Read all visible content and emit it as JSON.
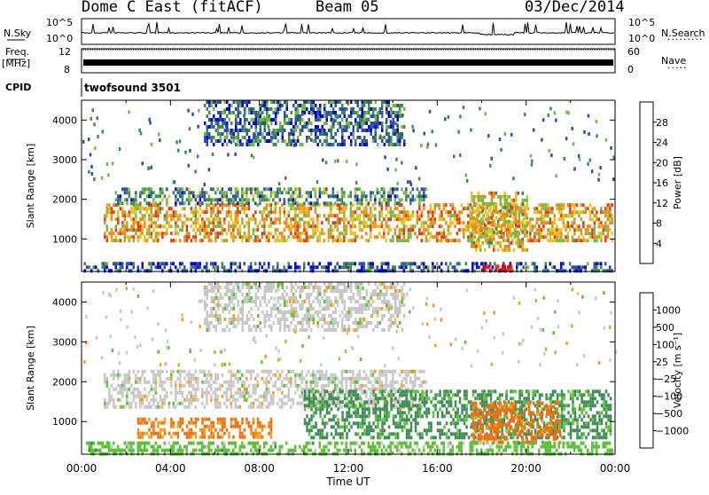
{
  "header": {
    "title": "Dome C East (fitACF)",
    "beam": "Beam 05",
    "date": "03/Dec/2014"
  },
  "status_panels": {
    "nsky_label": "N.Sky",
    "nsky_ticks": [
      "10^5",
      "10^0"
    ],
    "nsearch_label": "N.Search",
    "nsearch_ticks": [
      "10^5",
      "10^0"
    ],
    "freq_label": "Freq.",
    "freq_unit": "[MHz]",
    "freq_ticks": [
      "12",
      "8"
    ],
    "nave_label": "Nave",
    "nave_ticks": [
      "60",
      "0"
    ],
    "cpid_label": "CPID",
    "cpid_value": "twofsound 3501"
  },
  "chart_data": [
    {
      "type": "heatmap",
      "name": "power",
      "ylabel": "Slant Range [km]",
      "ylim": [
        180,
        4500
      ],
      "yticks": [
        "1000",
        "2000",
        "3000",
        "4000"
      ],
      "xlim": [
        "00:00",
        "24:00"
      ],
      "colorbar": {
        "label": "Power [dB]",
        "ticks": [
          "4",
          "8",
          "12",
          "16",
          "20",
          "24",
          "28"
        ],
        "colors": [
          "#0000ee",
          "#2e4fa8",
          "#3d8a56",
          "#74b846",
          "#e8c21a",
          "#f28a1a",
          "#e83a12",
          "#e60000"
        ]
      },
      "bands": [
        {
          "t0": 1.0,
          "t1": 23.9,
          "r0": 1000,
          "r1": 1900,
          "level": 20
        },
        {
          "t0": 1.5,
          "t1": 15.5,
          "r0": 1900,
          "r1": 2300,
          "level": 10
        },
        {
          "t0": 0.1,
          "t1": 23.9,
          "r0": 200,
          "r1": 420,
          "level": 6
        },
        {
          "t0": 5.5,
          "t1": 14.5,
          "r0": 3400,
          "r1": 4500,
          "level": 8
        },
        {
          "t0": 17.5,
          "t1": 20.0,
          "r0": 700,
          "r1": 2200,
          "level": 18
        },
        {
          "t0": 18.0,
          "t1": 19.3,
          "r0": 180,
          "r1": 350,
          "level": 30
        }
      ]
    },
    {
      "type": "heatmap",
      "name": "velocity",
      "ylabel": "Slant Range [km]",
      "ylim": [
        180,
        4500
      ],
      "yticks": [
        "1000",
        "2000",
        "3000",
        "4000"
      ],
      "xlabel": "Time UT",
      "xticks": [
        "00:00",
        "04:00",
        "08:00",
        "12:00",
        "16:00",
        "20:00",
        "00:00"
      ],
      "colorbar": {
        "label": "Velocity [m s⁻¹]",
        "ticks": [
          "1000",
          "500",
          "100",
          "25",
          "−25",
          "−100",
          "−500",
          "−1000"
        ],
        "colors": [
          "#1f3fb8",
          "#3e6e8e",
          "#3d8a56",
          "#5cc23a",
          "#c8c8c8",
          "#f0a020",
          "#f07010",
          "#e83a12",
          "#e60000"
        ]
      },
      "bands": [
        {
          "t0": 1.0,
          "t1": 15.5,
          "r0": 1400,
          "r1": 2300,
          "level": 0
        },
        {
          "t0": 10.0,
          "t1": 23.8,
          "r0": 600,
          "r1": 1800,
          "level": 150
        },
        {
          "t0": 2.5,
          "t1": 8.5,
          "r0": 600,
          "r1": 1100,
          "level": -150
        },
        {
          "t0": 17.5,
          "t1": 21.5,
          "r0": 500,
          "r1": 1500,
          "level": -200
        },
        {
          "t0": 0.2,
          "t1": 23.9,
          "r0": 200,
          "r1": 500,
          "level": 60
        },
        {
          "t0": 5.5,
          "t1": 14.5,
          "r0": 3300,
          "r1": 4500,
          "level": 0
        }
      ]
    }
  ]
}
